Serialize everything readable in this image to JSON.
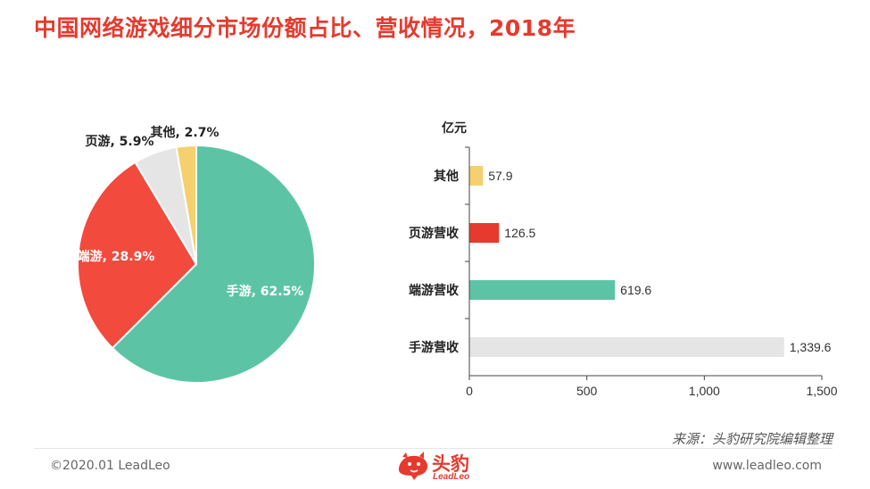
{
  "title": "中国网络游戏细分市场份额占比、营收情况，2018年",
  "chart_data": [
    {
      "type": "pie",
      "slices": [
        {
          "label": "手游",
          "value": 62.5,
          "display": "手游, 62.5%",
          "color": "#5cc4a5"
        },
        {
          "label": "端游",
          "value": 28.9,
          "display": "端游, 28.9%",
          "color": "#f24a3d"
        },
        {
          "label": "页游",
          "value": 5.9,
          "display": "页游, 5.9%",
          "color": "#e5e5e5"
        },
        {
          "label": "其他",
          "value": 2.7,
          "display": "其他, 2.7%",
          "color": "#f5d06e"
        }
      ]
    },
    {
      "type": "bar",
      "orientation": "horizontal",
      "unit_label": "亿元",
      "categories": [
        "其他",
        "页游营收",
        "端游营收",
        "手游营收"
      ],
      "values": [
        57.9,
        126.5,
        619.6,
        1339.6
      ],
      "value_labels": [
        "57.9",
        "126.5",
        "619.6",
        "1,339.6"
      ],
      "colors": [
        "#f5d06e",
        "#e63a2e",
        "#5cc4a5",
        "#e5e5e5"
      ],
      "xlim": [
        0,
        1500
      ],
      "xticks": [
        0,
        500,
        1000,
        1500
      ],
      "xtick_labels": [
        "0",
        "500",
        "1,000",
        "1,500"
      ]
    }
  ],
  "footer": {
    "source": "来源：头豹研究院编辑整理",
    "copyright": "©2020.01 LeadLeo",
    "website": "www.leadleo.com",
    "logo_cn": "头豹",
    "logo_en": "LeadLeo"
  }
}
